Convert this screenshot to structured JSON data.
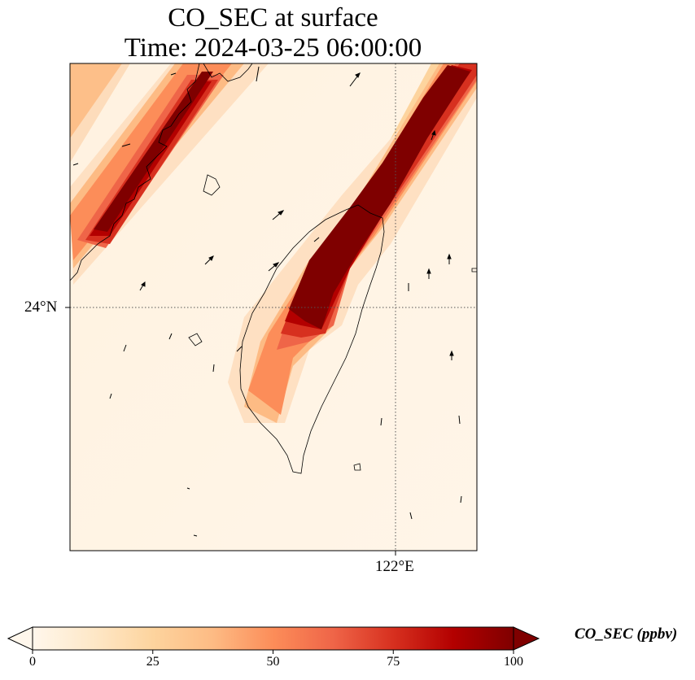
{
  "figure": {
    "title_line1": "CO_SEC at surface",
    "title_line2": "Time: 2024-03-25 06:00:00"
  },
  "map": {
    "lat_tick_label": "24°N",
    "lon_tick_label": "122°E",
    "gridlines": "dotted",
    "field": "CO_SEC",
    "features": [
      "coastline",
      "wind-vectors",
      "concentration-field"
    ]
  },
  "colorbar": {
    "label": "CO_SEC (ppbv)",
    "ticks": [
      "0",
      "25",
      "50",
      "75",
      "100"
    ],
    "min": 0,
    "max": 100,
    "extend": "both",
    "colormap": "OrRd",
    "colors": [
      "#fff7ec",
      "#fee8c8",
      "#fdd49e",
      "#fdbb84",
      "#fc8d59",
      "#ef6548",
      "#d7301f",
      "#b30000",
      "#7f0000"
    ]
  }
}
